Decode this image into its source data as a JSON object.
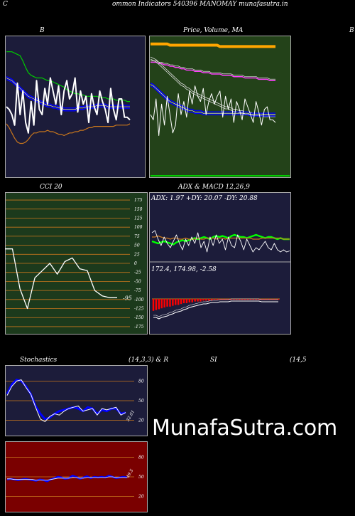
{
  "header": {
    "c_left": "C",
    "title": "ommon  Indicators 540396  MANOMAY munafasutra.in"
  },
  "watermark": "MunafaSutra.com",
  "colors": {
    "navy_bg": "#1c1c3a",
    "green_bg": "#1c3a1c",
    "dark_green_bg": "#234219",
    "red_bg": "#7a0000",
    "bb_line": "#0000ff",
    "upper_band": "#00b000",
    "lower_band": "#c8761c",
    "macd_hist": "#ff0000",
    "grid_orange": "#c8761c"
  },
  "chart_data": [
    {
      "id": "bollinger",
      "type": "line",
      "title": "B",
      "series": [
        {
          "role": "upper",
          "color": "#00cc00",
          "values": [
            92,
            92,
            92,
            91,
            90,
            89,
            85,
            80,
            76,
            74,
            73,
            72,
            72,
            72,
            71,
            70,
            70,
            69,
            68,
            67,
            66,
            65,
            63,
            62,
            61,
            60,
            60,
            59,
            59,
            58,
            58,
            58,
            58,
            58,
            57,
            57,
            57,
            56,
            56,
            56,
            55,
            55,
            55,
            55,
            54,
            54
          ]
        },
        {
          "role": "middle",
          "color": "#0000ff",
          "values": [
            72,
            71,
            70,
            68,
            66,
            64,
            62,
            60,
            58,
            57,
            56,
            55,
            54,
            53,
            52,
            51,
            51,
            50,
            50,
            49,
            49,
            48,
            48,
            48,
            48,
            48,
            49,
            49,
            49,
            50,
            50,
            50,
            50,
            51,
            51,
            51,
            51,
            50,
            50,
            50,
            50,
            50,
            50,
            50,
            50,
            50
          ]
        },
        {
          "role": "lower",
          "color": "#c8761c",
          "values": [
            37,
            34,
            30,
            26,
            23,
            22,
            22,
            23,
            25,
            28,
            30,
            30,
            31,
            31,
            31,
            32,
            31,
            31,
            30,
            29,
            29,
            28,
            29,
            30,
            30,
            31,
            31,
            32,
            32,
            33,
            34,
            34,
            35,
            35,
            35,
            35,
            35,
            35,
            35,
            35,
            36,
            36,
            36,
            36,
            36,
            37
          ]
        },
        {
          "role": "price",
          "color": "#ffffff",
          "values": [
            50,
            48,
            44,
            36,
            68,
            44,
            62,
            38,
            30,
            54,
            36,
            70,
            48,
            44,
            64,
            52,
            72,
            62,
            52,
            66,
            44,
            62,
            70,
            56,
            60,
            72,
            46,
            62,
            52,
            58,
            38,
            60,
            50,
            44,
            62,
            54,
            48,
            38,
            64,
            48,
            40,
            56,
            56,
            42,
            42,
            40
          ]
        }
      ]
    },
    {
      "id": "price_ma",
      "type": "line",
      "title": "Price,  Volume,  MA",
      "series": [
        {
          "role": "ma_long",
          "color": "#ffa500",
          "values": [
            98,
            98,
            98,
            98,
            98,
            98,
            98,
            97,
            97,
            97,
            97,
            97,
            97,
            97,
            97,
            97,
            97,
            97,
            97,
            97,
            97,
            97,
            97,
            97,
            97,
            96,
            96,
            96,
            96,
            96,
            96,
            96,
            96,
            96,
            96,
            96,
            96,
            96,
            96,
            96,
            96,
            96,
            96,
            96,
            96,
            96
          ]
        },
        {
          "role": "ma_mid",
          "color": "#ff40ff",
          "values": [
            84,
            84,
            84,
            83,
            83,
            82,
            82,
            81,
            81,
            80,
            80,
            79,
            79,
            78,
            78,
            78,
            77,
            77,
            77,
            76,
            76,
            76,
            75,
            75,
            75,
            75,
            74,
            74,
            74,
            74,
            73,
            73,
            73,
            73,
            72,
            72,
            72,
            72,
            72,
            71,
            71,
            71,
            71,
            70,
            70,
            70
          ]
        },
        {
          "role": "ma_short",
          "color": "#dddddd",
          "values": [
            88,
            87,
            86,
            84,
            82,
            80,
            78,
            76,
            74,
            72,
            70,
            68,
            67,
            65,
            64,
            62,
            61,
            60,
            59,
            58,
            57,
            56,
            55,
            54,
            53,
            52,
            51,
            50,
            50,
            49,
            48,
            48,
            47,
            47,
            46,
            46,
            46,
            45,
            45,
            45,
            45,
            44,
            44,
            44,
            44,
            44
          ]
        },
        {
          "role": "blue",
          "color": "#0000ff",
          "values": [
            67,
            66,
            64,
            62,
            60,
            58,
            56,
            54,
            53,
            52,
            51,
            50,
            49,
            48,
            47,
            47,
            46,
            46,
            46,
            45,
            45,
            45,
            45,
            45,
            45,
            45,
            45,
            45,
            45,
            45,
            45,
            45,
            45,
            45,
            45,
            45,
            44,
            44,
            44,
            44,
            44,
            44,
            44,
            44,
            44,
            44
          ]
        },
        {
          "role": "price",
          "color": "#ffffff",
          "values": [
            44,
            40,
            56,
            28,
            52,
            36,
            58,
            44,
            30,
            36,
            60,
            44,
            54,
            42,
            62,
            52,
            66,
            58,
            54,
            64,
            44,
            54,
            60,
            52,
            58,
            62,
            42,
            58,
            48,
            56,
            38,
            54,
            48,
            40,
            56,
            50,
            44,
            38,
            54,
            46,
            36,
            48,
            50,
            40,
            40,
            38
          ]
        }
      ]
    },
    {
      "id": "cci",
      "type": "line",
      "title": "CCI 20",
      "y_ticks": [
        175,
        150,
        125,
        100,
        75,
        50,
        25,
        0,
        -25,
        -50,
        -75,
        -100,
        -125,
        -150,
        -175
      ],
      "ylim": [
        -185,
        185
      ],
      "last_value": "-95",
      "values": [
        40,
        40,
        -70,
        -125,
        -40,
        -20,
        0,
        -30,
        5,
        15,
        -15,
        -20,
        -75,
        -90,
        -95,
        -95
      ]
    },
    {
      "id": "adx",
      "type": "line",
      "title": "ADX  & MACD 12,26,9",
      "readout": "ADX: 1.97  +DY: 20.07  -DY: 20.88",
      "series": [
        {
          "role": "plus_di",
          "color": "#00ff00",
          "values": [
            18,
            17,
            16,
            17,
            18,
            17,
            16,
            15,
            17,
            18,
            19,
            18,
            19,
            20,
            21,
            20,
            21,
            22,
            21,
            20,
            22,
            23,
            22,
            23,
            22,
            21,
            23,
            24,
            23,
            22,
            22,
            21,
            22,
            23,
            24,
            23,
            22,
            21,
            22,
            22,
            21,
            20,
            21,
            20,
            20,
            20
          ]
        },
        {
          "role": "minus_di",
          "color": "#c8761c",
          "values": [
            22,
            22,
            23,
            22,
            21,
            21,
            20,
            21,
            21,
            20,
            20,
            21,
            20,
            20,
            20,
            21,
            20,
            20,
            21,
            21,
            21,
            20,
            21,
            21,
            20,
            21,
            21,
            21,
            21,
            21,
            21,
            21,
            21,
            20,
            20,
            20,
            21,
            21,
            21,
            21,
            21,
            21,
            21,
            20,
            20,
            20
          ]
        },
        {
          "role": "adx",
          "color": "#ffffff",
          "values": [
            26,
            28,
            20,
            14,
            22,
            16,
            12,
            18,
            24,
            16,
            10,
            20,
            14,
            22,
            16,
            26,
            12,
            18,
            8,
            22,
            14,
            24,
            16,
            20,
            10,
            22,
            14,
            12,
            24,
            18,
            10,
            20,
            14,
            8,
            12,
            10,
            14,
            18,
            12,
            10,
            16,
            10,
            8,
            10,
            8,
            9
          ]
        }
      ]
    },
    {
      "id": "macd",
      "type": "bar",
      "readout": "172.4,  174.98,  -2.58",
      "histogram": [
        -14,
        -13,
        -12,
        -11,
        -10,
        -9,
        -9,
        -8,
        -7,
        -7,
        -6,
        -5,
        -5,
        -4,
        -4,
        -3,
        -3,
        -3,
        -2,
        -2,
        -2,
        -2,
        -1,
        -1,
        -1,
        -1,
        -1,
        -1,
        -1,
        -1,
        -1,
        -1,
        -1,
        -1,
        -1,
        -1,
        -1,
        -1,
        -1,
        -1,
        -1,
        -1,
        -1,
        -1,
        -1,
        -1
      ],
      "macd_line": [
        -26,
        -26,
        -28,
        -26,
        -25,
        -24,
        -22,
        -21,
        -19,
        -18,
        -17,
        -15,
        -14,
        -12,
        -11,
        -10,
        -9,
        -8,
        -7,
        -7,
        -6,
        -5,
        -5,
        -5,
        -4,
        -4,
        -4,
        -4,
        -3,
        -3,
        -3,
        -3,
        -3,
        -3,
        -3,
        -3,
        -3,
        -3,
        -3,
        -4,
        -4,
        -4,
        -4,
        -4,
        -4,
        -4
      ]
    },
    {
      "id": "stochastics",
      "type": "line",
      "title": "Stochastics",
      "params": "(14,3,3) & R",
      "y_ticks": [
        80,
        50,
        20
      ],
      "ylim": [
        0,
        100
      ],
      "last_value": "32.01",
      "series": [
        {
          "role": "k",
          "color": "#0000ff",
          "values": [
            60,
            75,
            82,
            80,
            72,
            60,
            42,
            30,
            22,
            24,
            30,
            34,
            36,
            38,
            40,
            38,
            34,
            40,
            38,
            30,
            36,
            34,
            38,
            38,
            30,
            32
          ]
        },
        {
          "role": "d",
          "color": "#ffffff",
          "values": [
            58,
            72,
            80,
            82,
            70,
            60,
            40,
            22,
            18,
            26,
            30,
            28,
            34,
            38,
            40,
            42,
            34,
            36,
            38,
            28,
            38,
            36,
            38,
            40,
            28,
            32
          ]
        }
      ]
    },
    {
      "id": "rsi",
      "type": "line",
      "title": "SI",
      "params": "(14,5",
      "y_ticks": [
        80,
        50,
        20
      ],
      "ylim": [
        0,
        100
      ],
      "last_value": "49.5",
      "series": [
        {
          "role": "rsi",
          "color": "#0000ff",
          "values": [
            46,
            47,
            46,
            45,
            46,
            47,
            46,
            45,
            44,
            46,
            45,
            43,
            46,
            48,
            50,
            49,
            47,
            48,
            52,
            50,
            47,
            49,
            51,
            48,
            50,
            49,
            50,
            49,
            52,
            50,
            48,
            49,
            50,
            49
          ]
        },
        {
          "role": "rsi_signal",
          "color": "#ffffff",
          "values": [
            47,
            47,
            46,
            46,
            46,
            46,
            46,
            46,
            45,
            45,
            45,
            45,
            46,
            47,
            48,
            48,
            48,
            48,
            49,
            49,
            48,
            48,
            49,
            49,
            49,
            49,
            49,
            49,
            50,
            50,
            49,
            49,
            49,
            49
          ]
        }
      ]
    }
  ]
}
